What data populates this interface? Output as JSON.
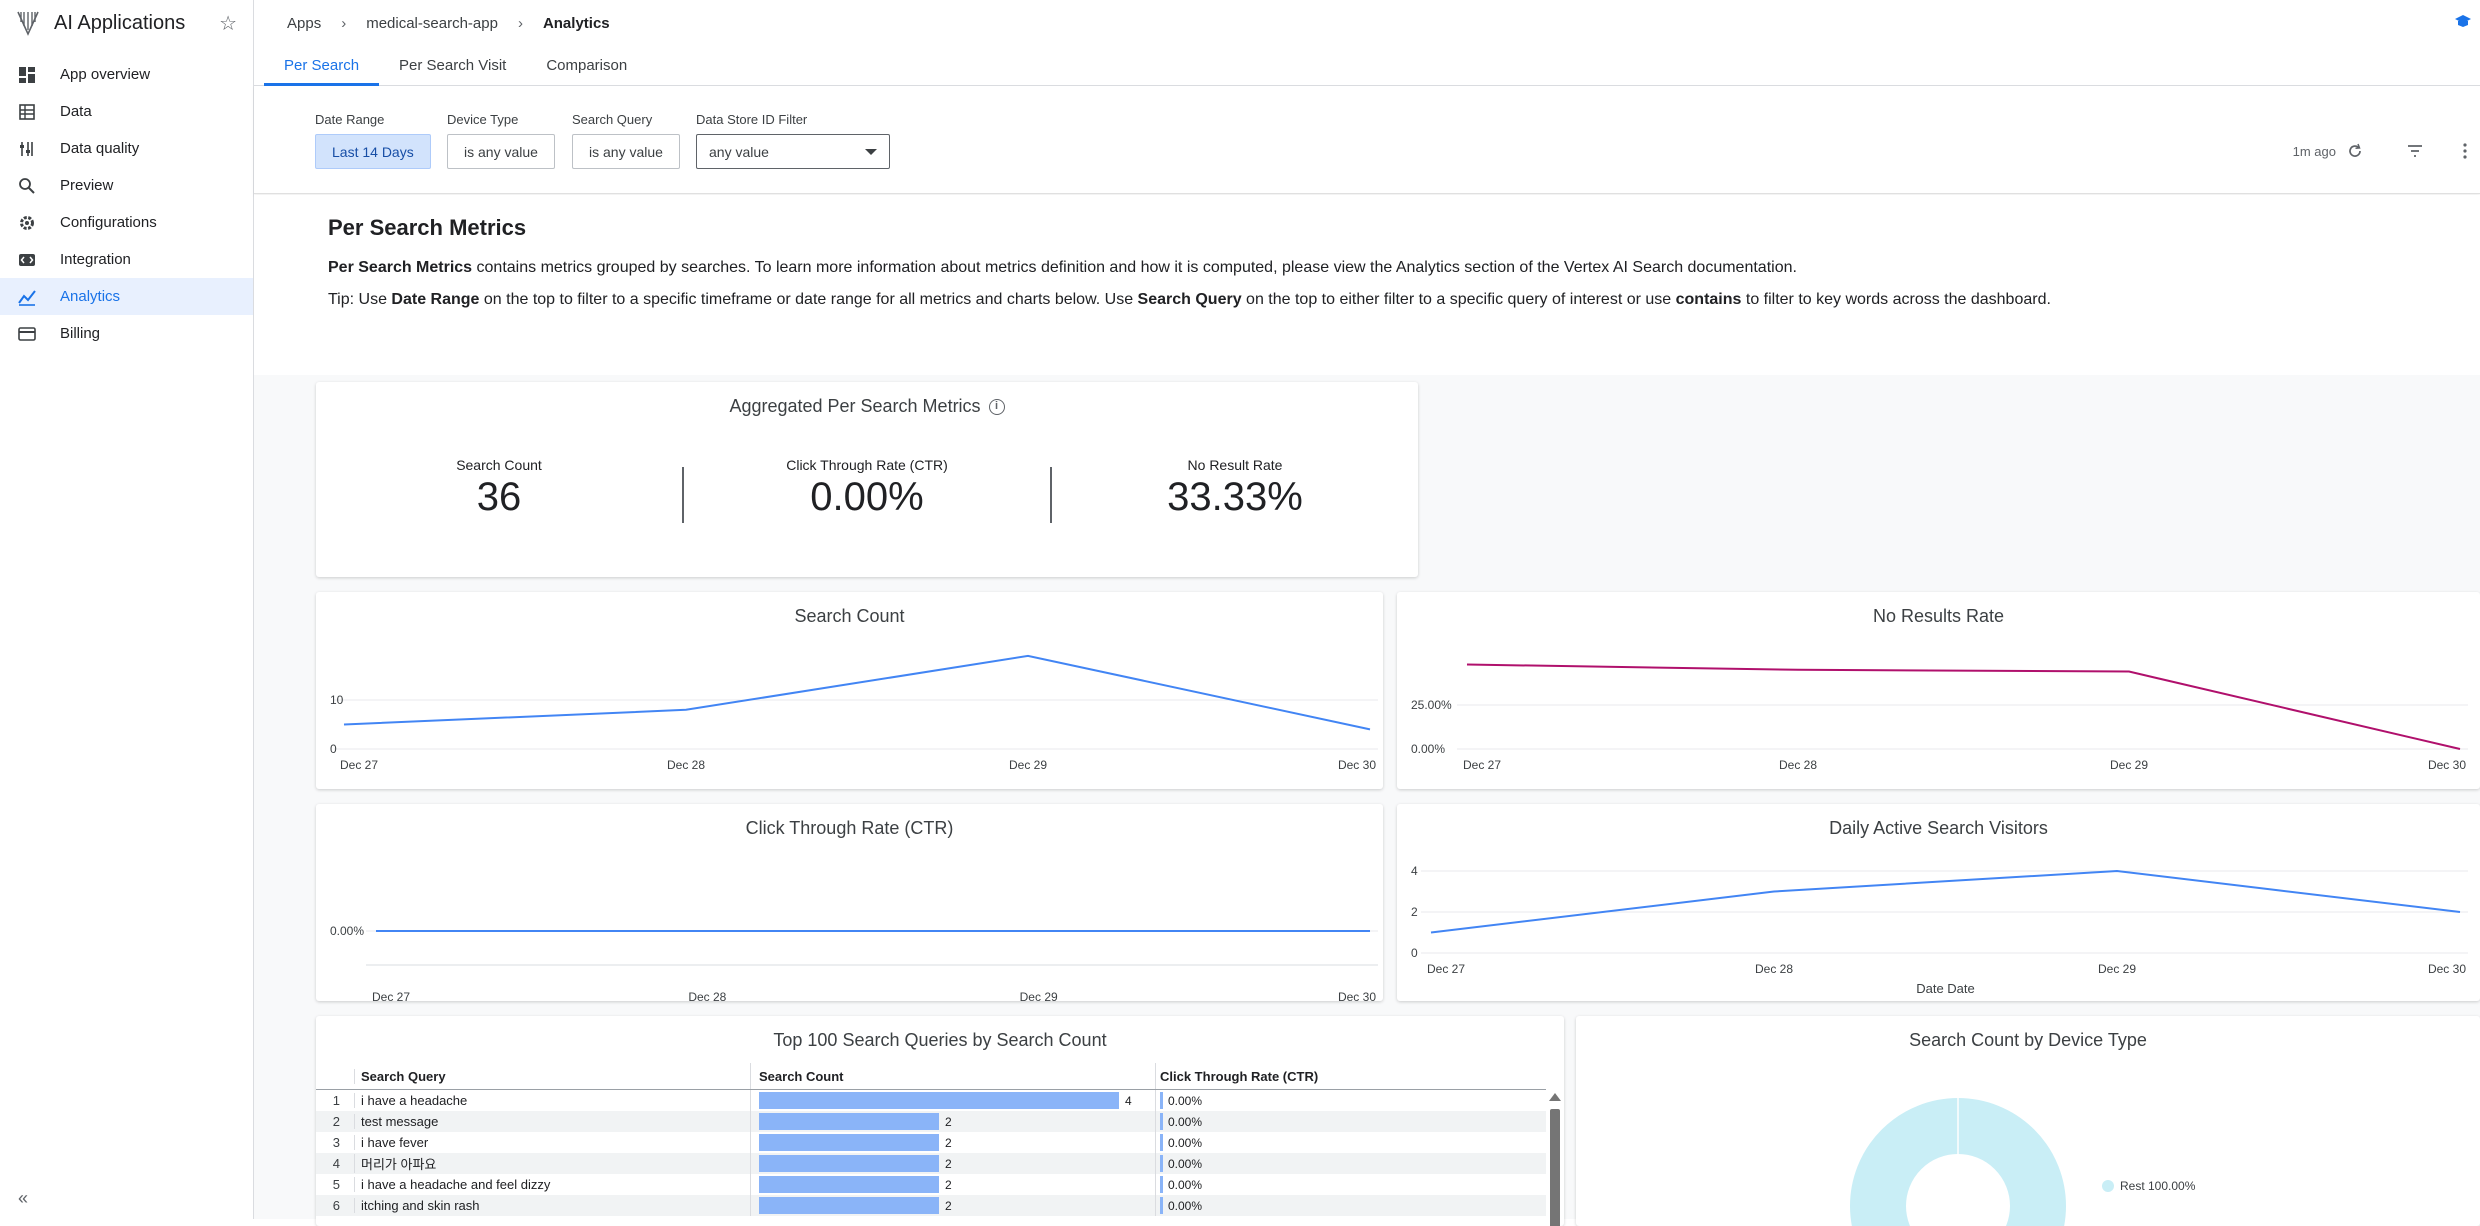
{
  "app": {
    "title": "AI Applications"
  },
  "sidebar": {
    "items": [
      {
        "label": "App overview",
        "icon": "dashboard-icon"
      },
      {
        "label": "Data",
        "icon": "table-icon"
      },
      {
        "label": "Data quality",
        "icon": "tune-icon"
      },
      {
        "label": "Preview",
        "icon": "search-icon"
      },
      {
        "label": "Configurations",
        "icon": "gear-icon"
      },
      {
        "label": "Integration",
        "icon": "code-icon"
      },
      {
        "label": "Analytics",
        "icon": "chart-icon",
        "active": true
      },
      {
        "label": "Billing",
        "icon": "card-icon"
      }
    ]
  },
  "breadcrumb": {
    "apps": "Apps",
    "app": "medical-search-app",
    "current": "Analytics"
  },
  "tabs": {
    "per_search": "Per Search",
    "per_search_visit": "Per Search Visit",
    "comparison": "Comparison"
  },
  "filters": {
    "date_range": {
      "label": "Date Range",
      "value": "Last 14 Days"
    },
    "device_type": {
      "label": "Device Type",
      "value": "is any value"
    },
    "search_query": {
      "label": "Search Query",
      "value": "is any value"
    },
    "data_store": {
      "label": "Data Store ID Filter",
      "value": "any value"
    },
    "updated": "1m ago"
  },
  "intro": {
    "title": "Per Search Metrics",
    "p1_bold": "Per Search Metrics",
    "p1_rest": " contains metrics grouped by searches. To learn more information about metrics definition and how it is computed, please view the Analytics section of the Vertex AI Search documentation.",
    "p2_a": "Tip: Use ",
    "p2_b": "Date Range",
    "p2_c": " on the top to filter to a specific timeframe or date range for all metrics and charts below. Use ",
    "p2_d": "Search Query",
    "p2_e": " on the top to either filter to a specific query of interest or use ",
    "p2_f": "contains",
    "p2_g": " to filter to key words across the dashboard."
  },
  "aggregated": {
    "title": "Aggregated Per Search Metrics",
    "search_count_label": "Search Count",
    "search_count": "36",
    "ctr_label": "Click Through Rate (CTR)",
    "ctr": "0.00%",
    "no_result_label": "No Result Rate",
    "no_result": "33.33%"
  },
  "colors": {
    "blue": "#4285f4",
    "magenta": "#b0106c"
  },
  "chart_data": [
    {
      "type": "line",
      "title": "Search Count",
      "categories": [
        "Dec 27",
        "Dec 28",
        "Dec 29",
        "Dec 30"
      ],
      "series": [
        {
          "values": [
            5,
            8,
            19,
            4
          ]
        }
      ],
      "yticks": [
        "0",
        "10"
      ],
      "ylim": [
        0,
        20
      ],
      "grid": true,
      "color": "#4285f4"
    },
    {
      "type": "line",
      "title": "No Results Rate",
      "categories": [
        "Dec 27",
        "Dec 28",
        "Dec 29",
        "Dec 30"
      ],
      "series": [
        {
          "values": [
            48,
            45,
            44,
            0
          ]
        }
      ],
      "yticks": [
        "0.00%",
        "25.00%"
      ],
      "ylim": [
        0,
        50
      ],
      "grid": true,
      "color": "#b0106c"
    },
    {
      "type": "line",
      "title": "Click Through Rate (CTR)",
      "categories": [
        "Dec 27",
        "Dec 28",
        "Dec 29",
        "Dec 30"
      ],
      "series": [
        {
          "values": [
            0,
            0,
            0,
            0
          ]
        }
      ],
      "yticks": [
        "0.00%"
      ],
      "ylim": [
        -1,
        1
      ],
      "grid": true,
      "color": "#4285f4"
    },
    {
      "type": "line",
      "title": "Daily Active Search Visitors",
      "xlabel": "Date Date",
      "categories": [
        "Dec 27",
        "Dec 28",
        "Dec 29",
        "Dec 30"
      ],
      "series": [
        {
          "values": [
            1,
            3,
            4,
            2
          ]
        }
      ],
      "yticks": [
        "0",
        "2",
        "4"
      ],
      "ylim": [
        0,
        4
      ],
      "grid": true,
      "color": "#4285f4"
    },
    {
      "type": "table",
      "title": "Top 100 Search Queries by Search Count",
      "columns": [
        "Search Query",
        "Search Count",
        "Click Through Rate (CTR)"
      ],
      "rows": [
        {
          "idx": "1",
          "query": "i have a headache",
          "count": 4,
          "ctr": "0.00%"
        },
        {
          "idx": "2",
          "query": "test message",
          "count": 2,
          "ctr": "0.00%"
        },
        {
          "idx": "3",
          "query": "i have fever",
          "count": 2,
          "ctr": "0.00%"
        },
        {
          "idx": "4",
          "query": "머리가 아파요",
          "count": 2,
          "ctr": "0.00%"
        },
        {
          "idx": "5",
          "query": "i have a headache and feel dizzy",
          "count": 2,
          "ctr": "0.00%"
        },
        {
          "idx": "6",
          "query": "itching and skin rash",
          "count": 2,
          "ctr": "0.00%"
        }
      ],
      "max": 4
    },
    {
      "type": "pie",
      "title": "Search Count by Device Type",
      "slices": [
        {
          "label": "Rest 100.00%",
          "value": 100
        }
      ],
      "color": "#c9eef6"
    }
  ]
}
